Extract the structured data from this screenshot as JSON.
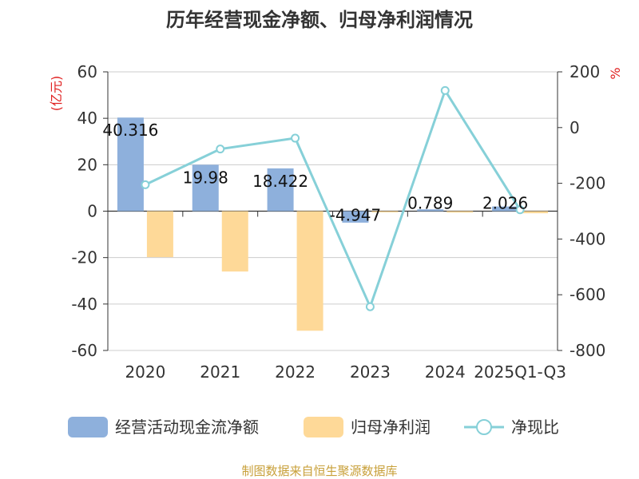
{
  "chart_data": {
    "type": "bar+line",
    "title": "历年经营现金净额、归母净利润情况",
    "categories": [
      "2020",
      "2021",
      "2022",
      "2023",
      "2024",
      "2025Q1-Q3"
    ],
    "series": [
      {
        "name": "经营活动现金流净额",
        "type": "bar",
        "axis": "left",
        "color": "#8eb0dc",
        "values": [
          40.316,
          19.98,
          18.422,
          -4.947,
          0.789,
          2.026
        ],
        "labels": [
          "40.316",
          "19.98",
          "18.422",
          "-4.947",
          "0.789",
          "2.026"
        ]
      },
      {
        "name": "归母净利润",
        "type": "bar",
        "axis": "left",
        "color": "#fed998",
        "values": [
          -19.8,
          -26.0,
          -51.5,
          -0.5,
          -0.6,
          -0.9
        ]
      },
      {
        "name": "净现比",
        "type": "line",
        "axis": "right",
        "color": "#86d0d8",
        "values": [
          -205,
          -77,
          -38,
          -643,
          133,
          -295
        ]
      }
    ],
    "y_left": {
      "label": "(亿元)",
      "min": -60,
      "max": 60,
      "ticks": [
        60,
        40,
        20,
        0,
        -20,
        -40,
        -60
      ]
    },
    "y_right": {
      "label": "%",
      "min": -800,
      "max": 200,
      "ticks": [
        200,
        0,
        -200,
        -400,
        -600,
        -800
      ]
    },
    "legend_position": "bottom",
    "source": "制图数据来自恒生聚源数据库"
  }
}
